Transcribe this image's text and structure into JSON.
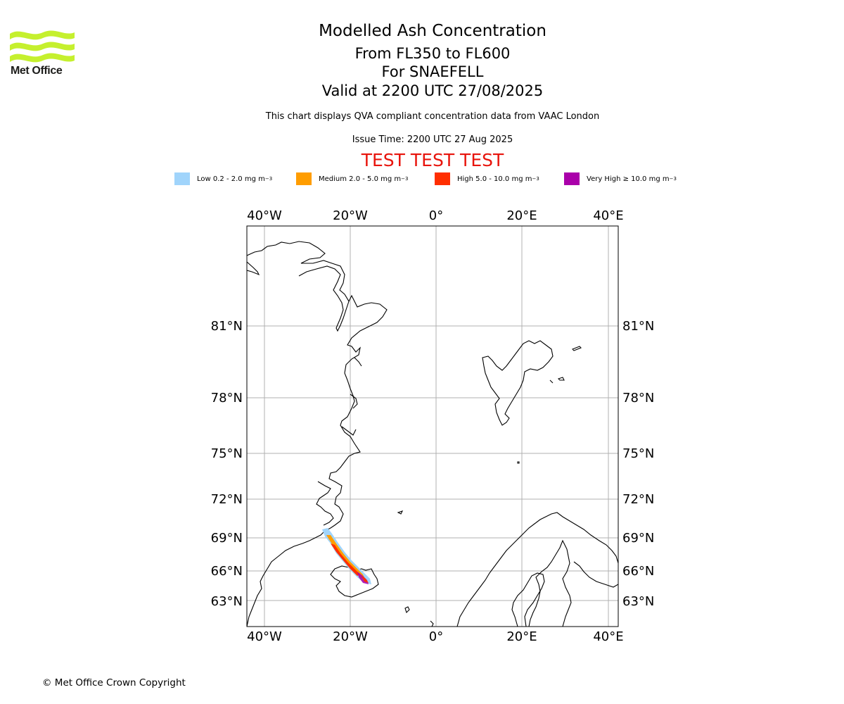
{
  "logo": {
    "text": "Met Office",
    "icon": "met-office-wave-logo"
  },
  "titles": {
    "main": "Modelled Ash Concentration",
    "levels": "From FL350 to FL600",
    "volcano": "For SNAEFELL",
    "valid": "Valid at 2200 UTC 27/08/2025"
  },
  "subtitle": "This chart displays QVA compliant concentration data from VAAC London",
  "issue_time": "Issue Time: 2200 UTC 27 Aug 2025",
  "test_banner": "TEST TEST TEST",
  "legend": [
    {
      "label": "Low 0.2 - 2.0 mg m",
      "color": "#a0d4fb"
    },
    {
      "label": "Medium 2.0 - 5.0 mg m",
      "color": "#ff9d00"
    },
    {
      "label": "High 5.0 - 10.0 mg m",
      "color": "#ff2e00"
    },
    {
      "label": "Very High  ≥  10.0 mg m",
      "color": "#aa00aa"
    }
  ],
  "legend_unit_exponent": "−3",
  "map": {
    "lon_labels": [
      "40°W",
      "20°W",
      "0°",
      "20°E",
      "40°E"
    ],
    "lat_labels": [
      "81°N",
      "78°N",
      "75°N",
      "72°N",
      "69°N",
      "66°N",
      "63°N"
    ],
    "gridlines": true
  },
  "copyright": "© Met Office Crown Copyright"
}
